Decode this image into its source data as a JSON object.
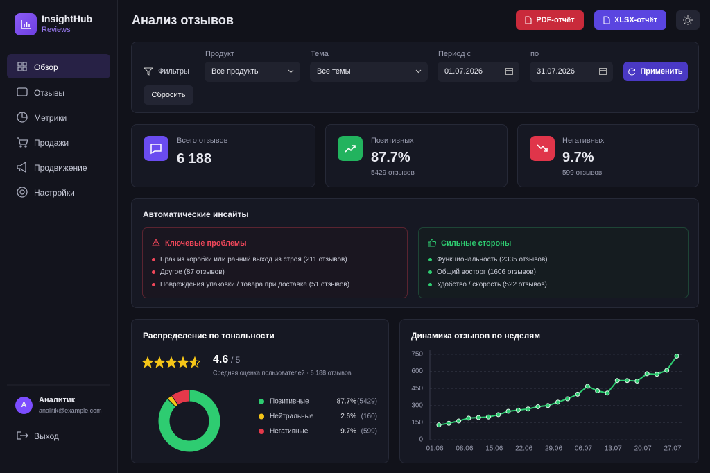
{
  "sidebar": {
    "brand": "InsightHub",
    "brand_sub": "Reviews",
    "nav": [
      "Обзор",
      "Отзывы",
      "Метрики",
      "Продажи",
      "Продвижение",
      "Настройки"
    ],
    "user": {
      "initial": "A",
      "name": "Аналитик",
      "email": "analitik@example.com"
    },
    "logout": "Выход"
  },
  "header": {
    "title": "Анализ отзывов",
    "pdf": "PDF-отчёт",
    "xlsx": "XLSX-отчёт"
  },
  "filters": {
    "label": "Фильтры",
    "product_label": "Продукт",
    "product": "Все продукты",
    "topic_label": "Тема",
    "topic": "Все темы",
    "from_label": "Период с",
    "from": "01.07.2026",
    "to_label": "по",
    "to": "31.07.2026",
    "apply": "Применить",
    "reset": "Сбросить"
  },
  "kpis": [
    {
      "label": "Всего отзывов",
      "value": "6 188"
    },
    {
      "label": "Позитивных",
      "value": "87.7%",
      "sub": "5429 отзывов"
    },
    {
      "label": "Негативных",
      "value": "9.7%",
      "sub": "599 отзывов"
    }
  ],
  "insights": {
    "title": "Автоматические инсайты",
    "problems": {
      "title": "Ключевые проблемы",
      "items": [
        "Брак из коробки или ранний выход из строя (211 отзывов)",
        "Другое (87 отзывов)",
        "Повреждения упаковки / товара при доставке (51 отзывов)"
      ]
    },
    "strengths": {
      "title": "Сильные стороны",
      "items": [
        "Функциональность (2335 отзывов)",
        "Общий восторг (1606 отзывов)",
        "Удобство / скорость (522 отзывов)"
      ]
    }
  },
  "chart_data": [
    {
      "type": "pie",
      "title": "Распределение по тональности",
      "rating": 4.6,
      "rating_max": {
        "value": 5,
        "label": "/ 5"
      },
      "rating_note": "Средняя оценка пользователей · 6 188 отзывов",
      "categories": [
        "Позитивные",
        "Нейтральные",
        "Негативные"
      ],
      "values": [
        87.7,
        2.6,
        9.7
      ],
      "value_labels": [
        "87.7%",
        "2.6%",
        "9.7%"
      ],
      "count_labels": [
        "(5429)",
        "(160)",
        "(599)"
      ],
      "colors": [
        "#2ecc71",
        "#f5c518",
        "#e5394a"
      ]
    },
    {
      "type": "line",
      "title": "Динамика отзывов по неделям",
      "categories": [
        "01.06",
        null,
        null,
        "08.06",
        null,
        null,
        "15.06",
        null,
        null,
        "22.06",
        null,
        null,
        "29.06",
        null,
        null,
        "06.07",
        null,
        null,
        "13.07",
        null,
        null,
        "20.07",
        null,
        null,
        "27.07"
      ],
      "values": [
        130,
        145,
        165,
        190,
        195,
        200,
        220,
        250,
        260,
        270,
        290,
        300,
        330,
        360,
        400,
        470,
        430,
        410,
        520,
        520,
        515,
        580,
        575,
        610,
        735
      ],
      "color": "#2ecc71",
      "ylim": [
        0,
        750
      ],
      "yticks": [
        0,
        150,
        300,
        450,
        600,
        750
      ],
      "grid": true
    }
  ]
}
